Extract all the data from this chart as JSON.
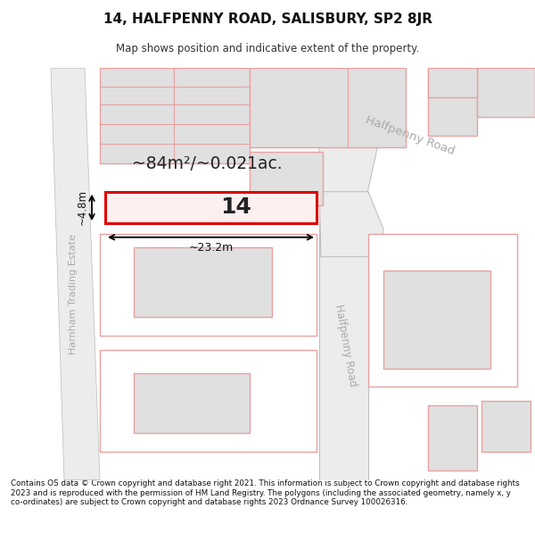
{
  "title": "14, HALFPENNY ROAD, SALISBURY, SP2 8JR",
  "subtitle": "Map shows position and indicative extent of the property.",
  "footer": "Contains OS data © Crown copyright and database right 2021. This information is subject to Crown copyright and database rights 2023 and is reproduced with the permission of HM Land Registry. The polygons (including the associated geometry, namely x, y co-ordinates) are subject to Crown copyright and database rights 2023 Ordnance Survey 100026316.",
  "map_bg": "#ffffff",
  "road_fill": "#ececec",
  "road_edge": "#bbbbbb",
  "building_fill": "#e0e0e0",
  "building_edge": "#e8a0a0",
  "highlight_fill": "#fff0f0",
  "highlight_edge": "#dd0000",
  "area_text": "~84m²/~0.021ac.",
  "number_text": "14",
  "dim_width": "~23.2m",
  "dim_height": "~4.8m",
  "road_name_halfpenny_diag": "Halfpenny Road",
  "road_name_halfpenny_vert": "Halfpenny Road",
  "road_name_harnham": "Harnham Trading Estate",
  "label_color": "#aaaaaa"
}
